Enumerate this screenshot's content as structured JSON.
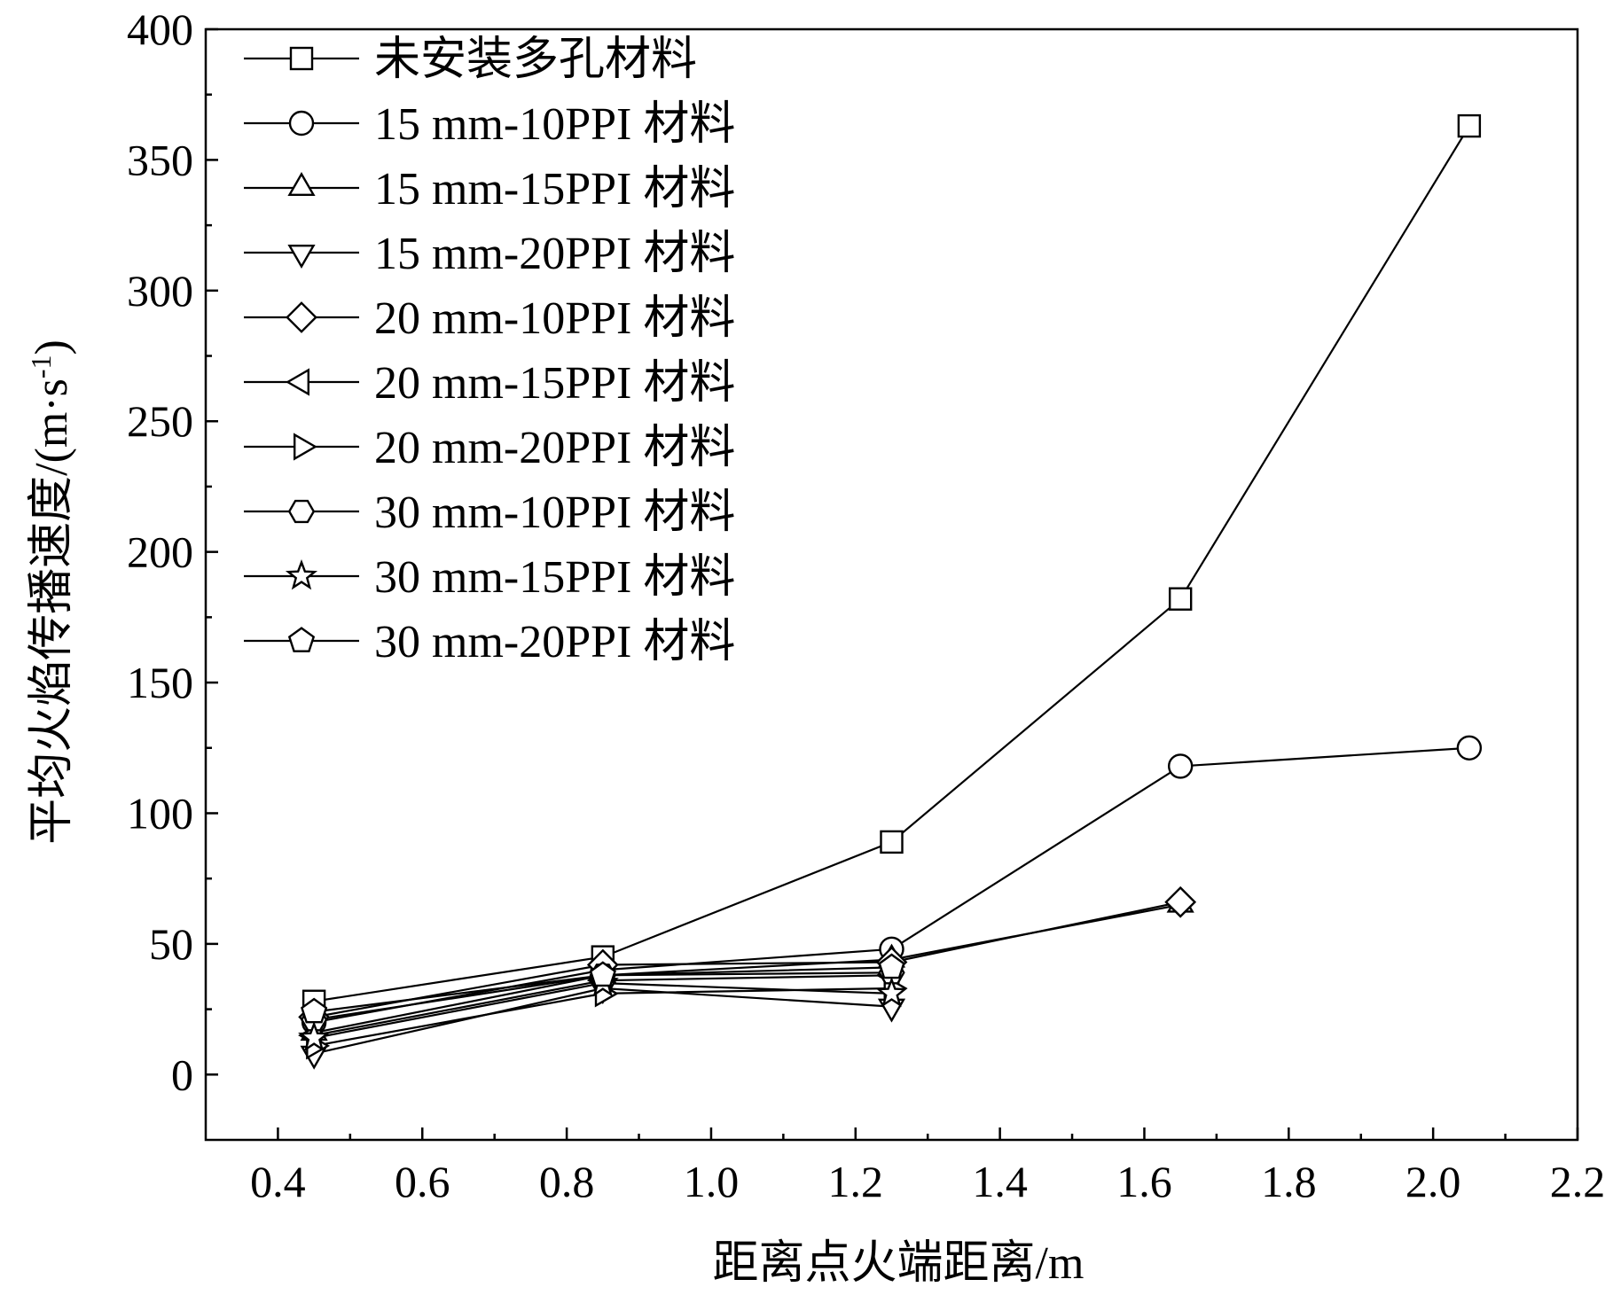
{
  "chart_data": {
    "type": "line",
    "xlabel": "距离点火端距离/m",
    "ylabel": "平均火焰传播速度/(m·s",
    "ylabel_sup": "-1",
    "ylabel_tail": ")",
    "xlim": [
      0.3,
      2.2
    ],
    "ylim": [
      -25,
      400
    ],
    "xticks": [
      0.4,
      0.6,
      0.8,
      1.0,
      1.2,
      1.4,
      1.6,
      1.8,
      2.0,
      2.2
    ],
    "xtick_labels": [
      "0.4",
      "0.6",
      "0.8",
      "1.0",
      "1.2",
      "1.4",
      "1.6",
      "1.8",
      "2.0",
      "2.2"
    ],
    "yticks": [
      0,
      50,
      100,
      150,
      200,
      250,
      300,
      350,
      400
    ],
    "ytick_labels": [
      "0",
      "50",
      "100",
      "150",
      "200",
      "250",
      "300",
      "350",
      "400"
    ],
    "grid": false,
    "legend_position": "top-left",
    "series": [
      {
        "name": "未安装多孔材料",
        "marker": "square",
        "x": [
          0.45,
          0.85,
          1.25,
          1.65,
          2.05
        ],
        "y": [
          28,
          45,
          89,
          182,
          363
        ]
      },
      {
        "name": "15 mm-10PPI 材料",
        "marker": "circle",
        "x": [
          0.45,
          0.85,
          1.25,
          1.65,
          2.05
        ],
        "y": [
          20,
          40,
          48,
          118,
          125
        ]
      },
      {
        "name": "15 mm-15PPI 材料",
        "marker": "triangle-up",
        "x": [
          0.45,
          0.85,
          1.25,
          1.65
        ],
        "y": [
          16,
          38,
          44,
          65
        ]
      },
      {
        "name": "15 mm-20PPI 材料",
        "marker": "triangle-down",
        "x": [
          0.45,
          0.85,
          1.25
        ],
        "y": [
          8,
          33,
          26
        ]
      },
      {
        "name": "20 mm-10PPI 材料",
        "marker": "diamond",
        "x": [
          0.45,
          0.85,
          1.25,
          1.65
        ],
        "y": [
          22,
          42,
          43,
          66
        ]
      },
      {
        "name": "20 mm-15PPI 材料",
        "marker": "triangle-left",
        "x": [
          0.45,
          0.85,
          1.25
        ],
        "y": [
          15,
          36,
          38
        ]
      },
      {
        "name": "20 mm-20PPI 材料",
        "marker": "triangle-right",
        "x": [
          0.45,
          0.85,
          1.25
        ],
        "y": [
          11,
          31,
          33
        ]
      },
      {
        "name": "30 mm-10PPI 材料",
        "marker": "hexagon",
        "x": [
          0.45,
          0.85,
          1.25
        ],
        "y": [
          21,
          38,
          39
        ]
      },
      {
        "name": "30 mm-15PPI 材料",
        "marker": "star",
        "x": [
          0.45,
          0.85,
          1.25
        ],
        "y": [
          14,
          35,
          31
        ]
      },
      {
        "name": "30 mm-20PPI 材料",
        "marker": "pentagon",
        "x": [
          0.45,
          0.85,
          1.25
        ],
        "y": [
          24,
          38,
          41
        ]
      }
    ]
  }
}
